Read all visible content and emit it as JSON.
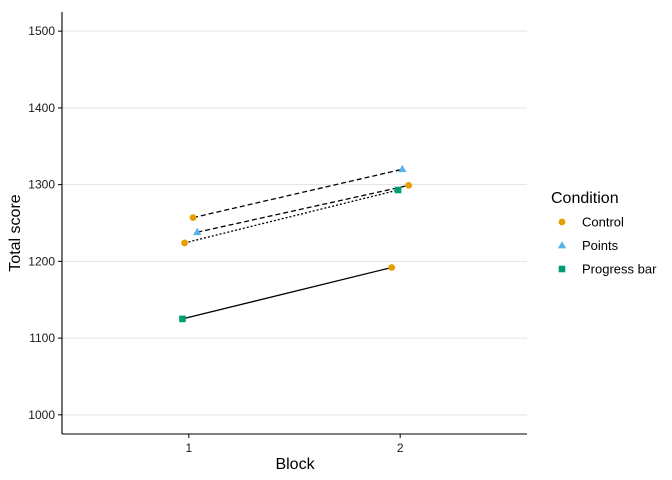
{
  "chart_data": {
    "type": "scatter",
    "title": "",
    "xlabel": "Block",
    "ylabel": "Total score",
    "xlim": [
      0.4,
      2.6
    ],
    "ylim": [
      975,
      1525
    ],
    "x_ticks": [
      1,
      2
    ],
    "y_ticks": [
      1000,
      1100,
      1200,
      1300,
      1400,
      1500
    ],
    "grid": "horizontal",
    "legend": {
      "title": "Condition",
      "position": "right",
      "entries": [
        {
          "name": "Control",
          "marker": "circle",
          "color": "#E69F00"
        },
        {
          "name": "Points",
          "marker": "triangle",
          "color": "#56B4E9"
        },
        {
          "name": "Progress bar",
          "marker": "square",
          "color": "#009E73"
        }
      ]
    },
    "segments": [
      {
        "linetype": "solid",
        "start": {
          "condition": "Progress bar",
          "x": 0.97,
          "y": 1125
        },
        "end": {
          "condition": "Control",
          "x": 1.96,
          "y": 1192
        }
      },
      {
        "linetype": "dotted",
        "start": {
          "condition": "Control",
          "x": 0.98,
          "y": 1224
        },
        "end": {
          "condition": "Progress bar",
          "x": 1.99,
          "y": 1293
        }
      },
      {
        "linetype": "dashed",
        "start": {
          "condition": "Points",
          "x": 1.04,
          "y": 1238
        },
        "end": {
          "condition": "Control",
          "x": 2.04,
          "y": 1299
        }
      },
      {
        "linetype": "dashed",
        "start": {
          "condition": "Control",
          "x": 1.02,
          "y": 1257
        },
        "end": {
          "condition": "Points",
          "x": 2.01,
          "y": 1320
        }
      }
    ]
  }
}
